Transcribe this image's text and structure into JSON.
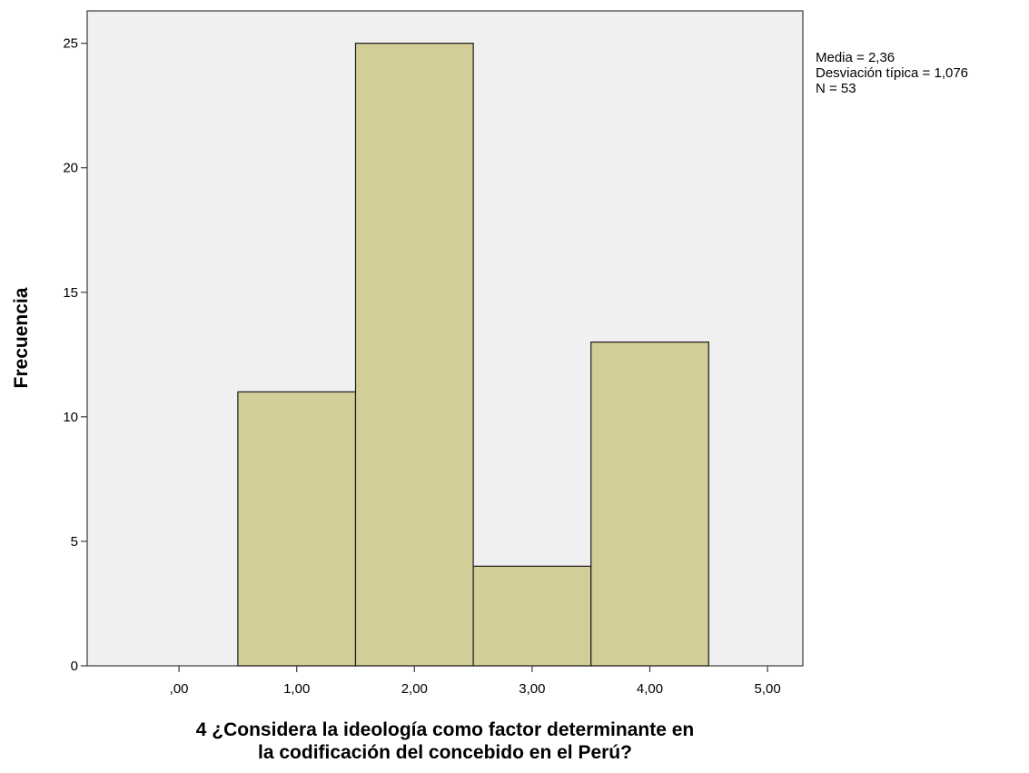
{
  "chart_data": {
    "type": "bar",
    "title": "",
    "xlabel": "4 ¿Considera la ideología como factor determinante en la codificación del concebido en el Perú?",
    "xlabel_lines": [
      "4 ¿Considera la ideología como factor determinante en",
      "la codificación del concebido en el Perú?"
    ],
    "ylabel": "Frecuencia",
    "x_ticks": [
      0,
      1,
      2,
      3,
      4,
      5
    ],
    "x_tick_labels": [
      ",00",
      "1,00",
      "2,00",
      "3,00",
      "4,00",
      "5,00"
    ],
    "y_ticks": [
      0,
      5,
      10,
      15,
      20,
      25
    ],
    "y_tick_labels": [
      "0",
      "5",
      "10",
      "15",
      "20",
      "25"
    ],
    "bins": [
      {
        "from": 0.5,
        "to": 1.5,
        "center": 1,
        "value": 11
      },
      {
        "from": 1.5,
        "to": 2.5,
        "center": 2,
        "value": 25
      },
      {
        "from": 2.5,
        "to": 3.5,
        "center": 3,
        "value": 4
      },
      {
        "from": 3.5,
        "to": 4.5,
        "center": 4,
        "value": 13
      }
    ],
    "xlim": [
      -0.78,
      5.3
    ],
    "ylim": [
      0,
      26.3
    ],
    "grid": false,
    "colors": {
      "bar_fill": "#d3cd97",
      "bar_stroke": "#1a1a1a",
      "plot_background": "#f0f0f0",
      "frame": "#3a3a3a"
    },
    "stats": [
      "Media = 2,36",
      "Desviación típica = 1,076",
      "N = 53"
    ]
  }
}
